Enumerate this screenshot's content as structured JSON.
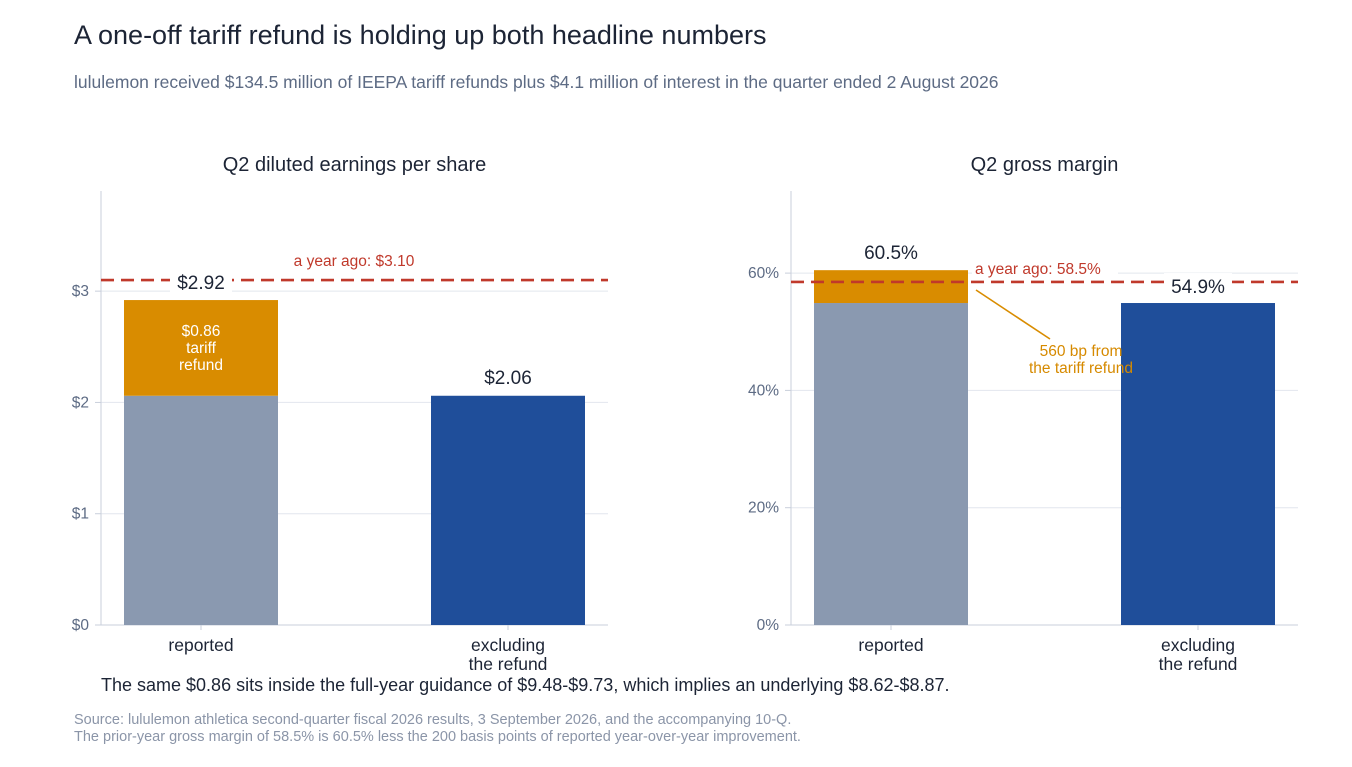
{
  "title": "A one-off tariff refund is holding up both headline numbers",
  "subtitle": "lululemon received $134.5 million of IEEPA tariff refunds plus $4.1 million of interest in the quarter ended 2 August 2026",
  "footnote": "The same $0.86 sits inside the full-year guidance of $9.48-$9.73, which implies an underlying $8.62-$8.87.",
  "source_lines": [
    "Source: lululemon athletica second-quarter fiscal 2026 results, 3 September 2026, and the accompanying 10-Q.",
    "The prior-year gross margin of 58.5% is 60.5% less the 200 basis points of reported year-over-year improvement."
  ],
  "colors": {
    "base": "#8a99b0",
    "refund": "#d98c00",
    "excluding": "#1f4e9a",
    "reference": "#c0392b",
    "grid": "#e2e6ee",
    "axis": "#c9cfdb"
  },
  "chart_data": [
    {
      "type": "bar",
      "stacked": true,
      "title": "Q2 diluted earnings per share",
      "categories": [
        "reported",
        "excluding the refund"
      ],
      "category_lines": [
        [
          "reported"
        ],
        [
          "excluding",
          "the refund"
        ]
      ],
      "series": [
        {
          "name": "",
          "values": [
            2.06,
            2.06
          ],
          "color_key": "mixed"
        },
        {
          "name": "",
          "values": [
            0.86,
            0
          ]
        }
      ],
      "totals_labels": [
        "$2.92",
        "$2.06"
      ],
      "segment_label": [
        "$0.86",
        "tariff",
        "refund"
      ],
      "reference_line": {
        "value": 3.1,
        "label": "a year ago: $3.10"
      },
      "ylim": [
        0,
        3.9
      ],
      "yticks": [
        0,
        1,
        2,
        3
      ],
      "ytick_labels": [
        "$0",
        "$1",
        "$2",
        "$3"
      ],
      "grid": true
    },
    {
      "type": "bar",
      "stacked": true,
      "title": "Q2 gross margin",
      "categories": [
        "reported",
        "excluding the refund"
      ],
      "category_lines": [
        [
          "reported"
        ],
        [
          "excluding",
          "the refund"
        ]
      ],
      "series": [
        {
          "name": "",
          "values": [
            54.9,
            54.9
          ]
        },
        {
          "name": "",
          "values": [
            5.6,
            0
          ]
        }
      ],
      "totals_labels": [
        "60.5%",
        "54.9%"
      ],
      "reference_line": {
        "value": 58.5,
        "label": "a year ago: 58.5%"
      },
      "callout": [
        "560 bp from",
        "the tariff refund"
      ],
      "ylim": [
        0,
        74
      ],
      "yticks": [
        0,
        20,
        40,
        60
      ],
      "ytick_labels": [
        "0%",
        "20%",
        "40%",
        "60%"
      ],
      "grid": true
    }
  ]
}
